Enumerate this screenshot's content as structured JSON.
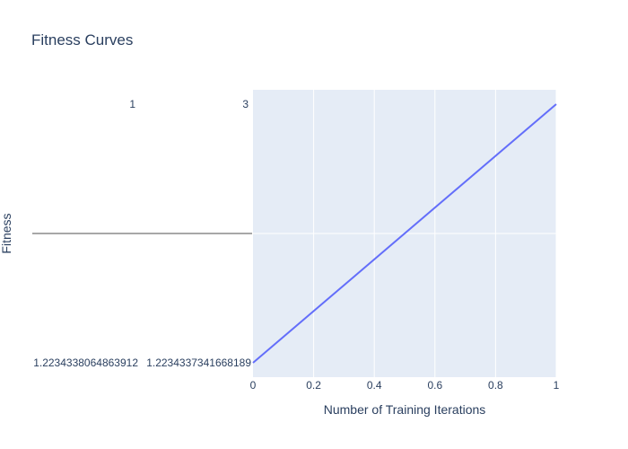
{
  "chart_data": {
    "type": "line",
    "title": "Fitness Curves",
    "xlabel": "Number of Training Iterations",
    "ylabel": "Fitness",
    "xlim": [
      0,
      1
    ],
    "ylim": [
      1.2234337341668189,
      1.2234338064863912
    ],
    "x_ticks": [
      "0",
      "0.2",
      "0.4",
      "0.6",
      "0.8",
      "1"
    ],
    "x_tick_values": [
      0,
      0.2,
      0.4,
      0.6,
      0.8,
      1
    ],
    "grid": true,
    "series": [
      {
        "color": "#636efa",
        "x": [
          0,
          1
        ],
        "y": [
          1.2234337341668189,
          1.2234338064863912
        ]
      }
    ],
    "parallel_axes": [
      {
        "top_label": "1",
        "bottom_label": "1.2234338064863912"
      },
      {
        "top_label": "3",
        "bottom_label": "1.2234337341668189"
      }
    ],
    "parallel_line_color": "#8c8c8c"
  }
}
